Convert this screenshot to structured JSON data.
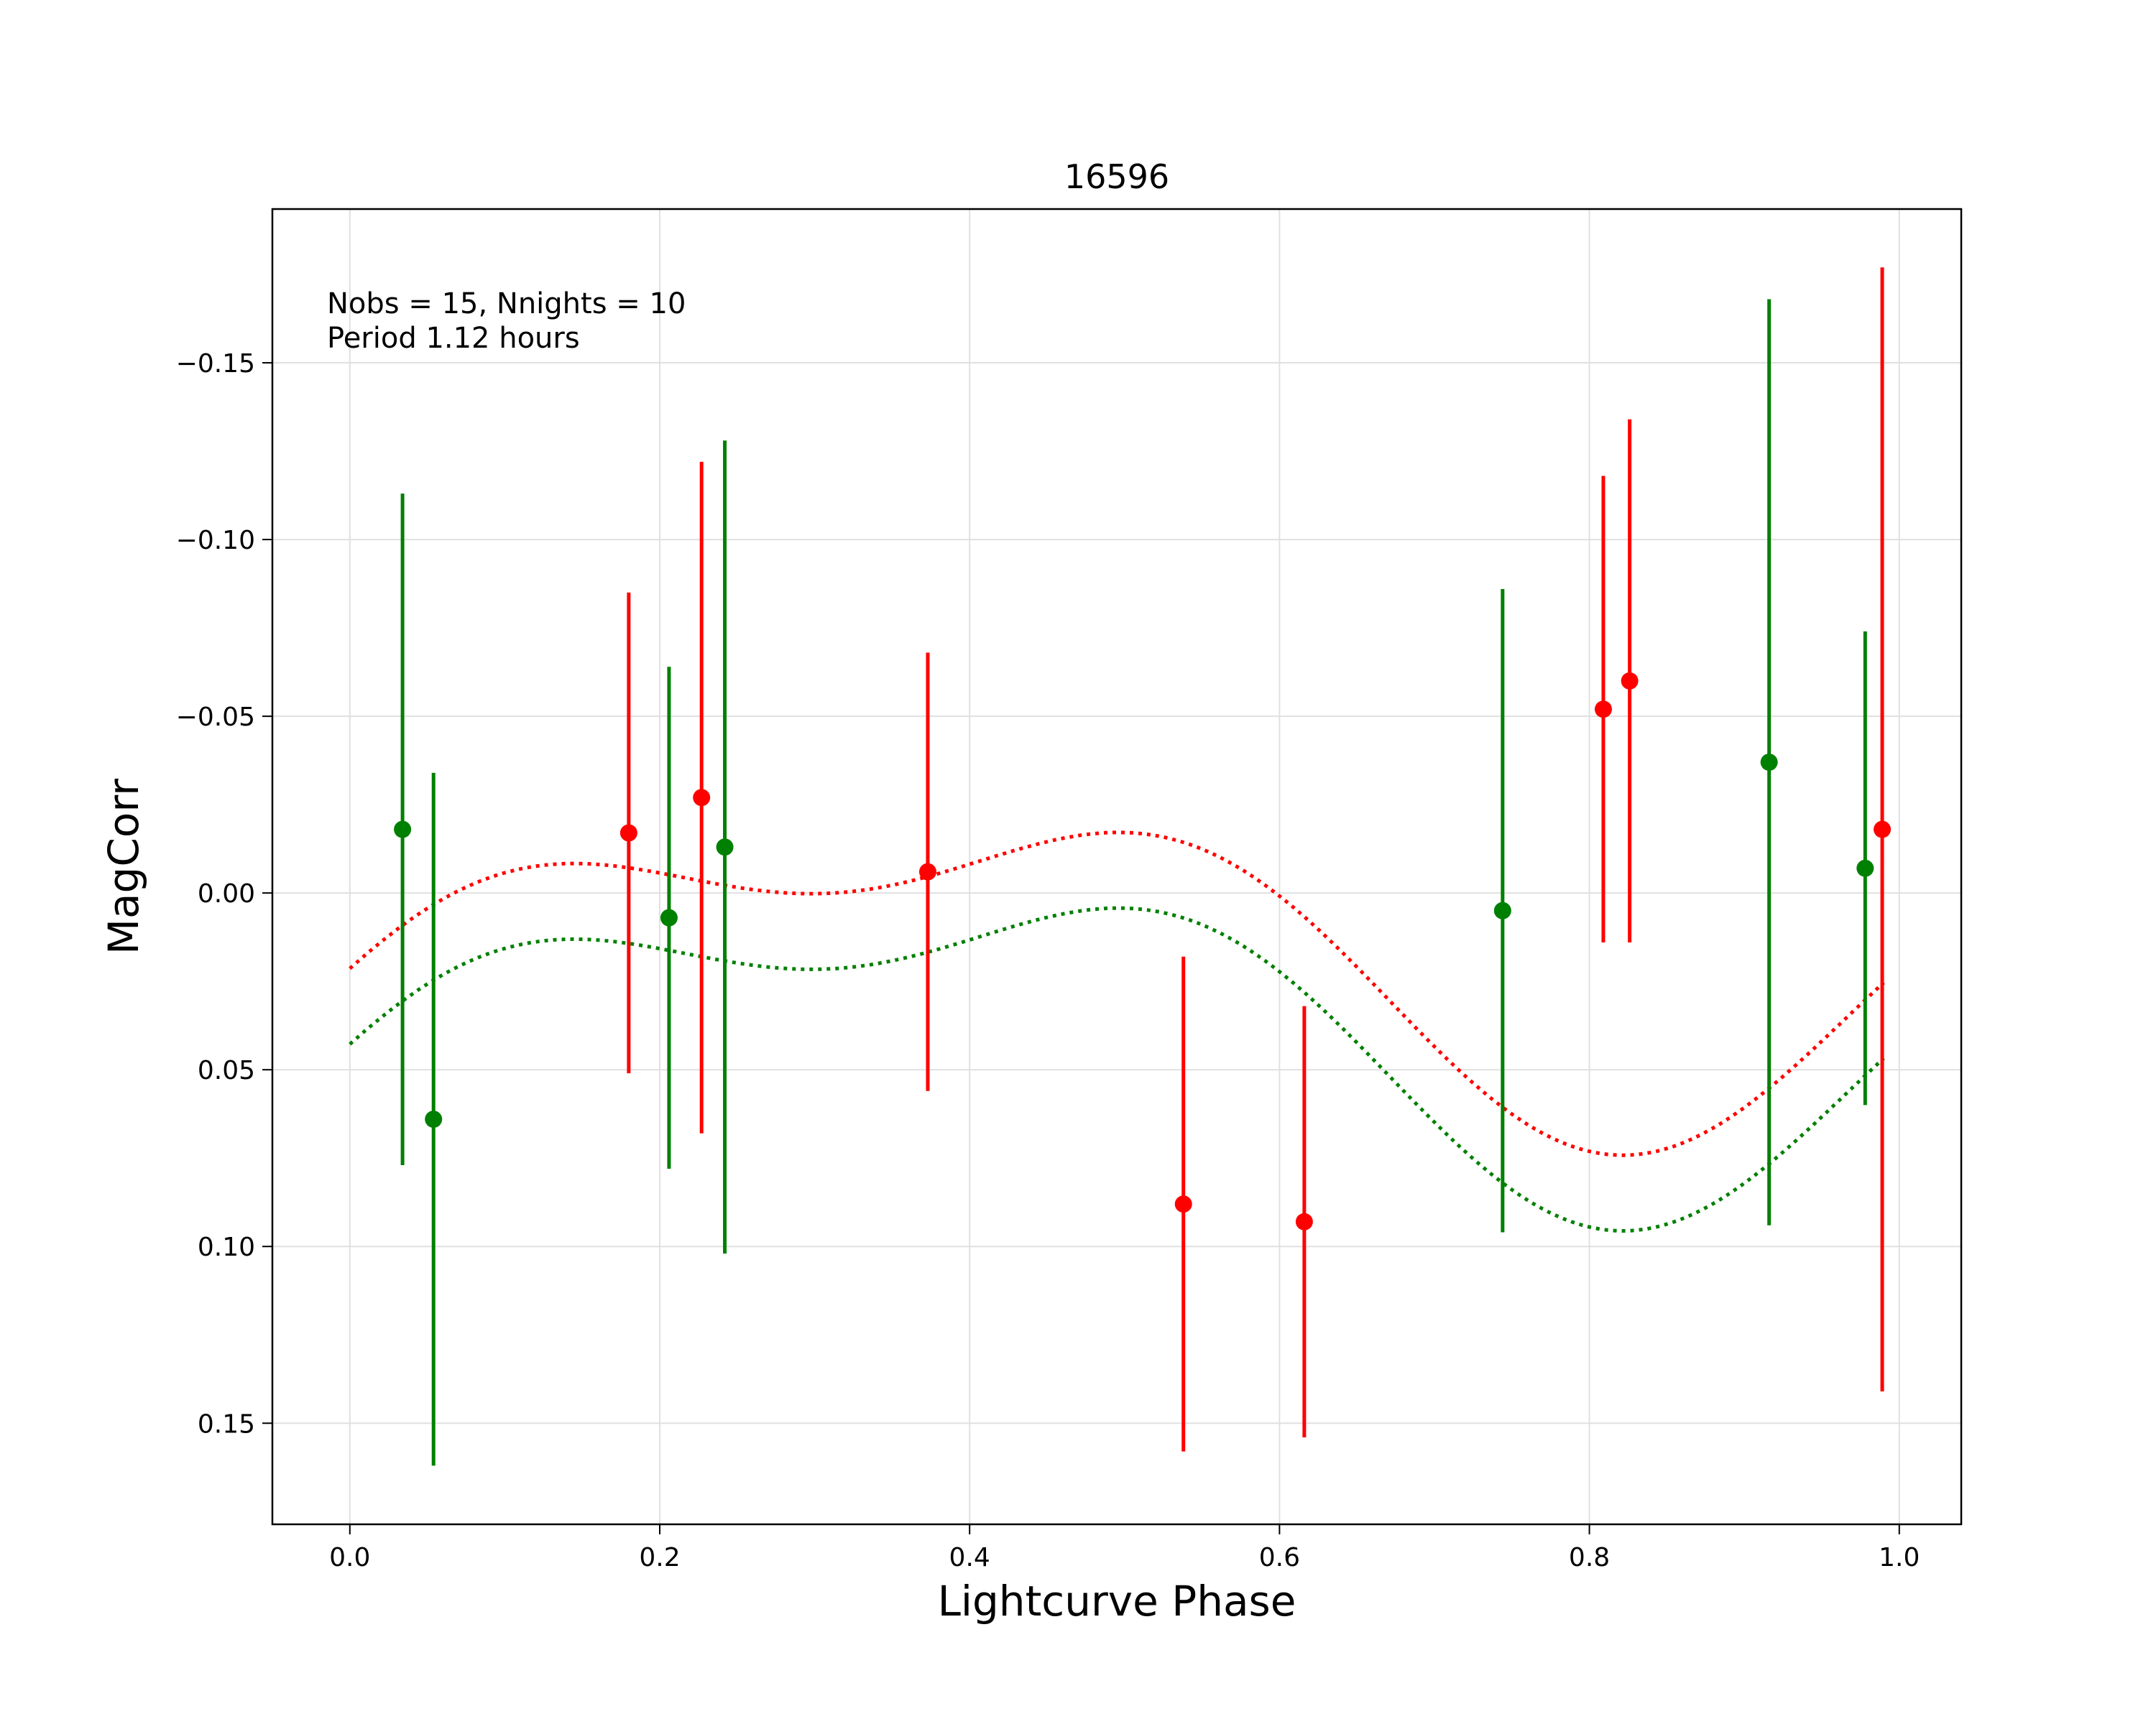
{
  "chart_data": {
    "type": "scatter",
    "title": "16596",
    "xlabel": "Lightcurve Phase",
    "ylabel": "MagCorr",
    "xlim": [
      -0.05,
      1.04
    ],
    "ylim": [
      0.1786,
      -0.1935
    ],
    "y_inverted": true,
    "grid": true,
    "annotation": [
      "Nobs = 15, Nnights = 10",
      "Period 1.12 hours"
    ],
    "xticks": [
      0.0,
      0.2,
      0.4,
      0.6,
      0.8,
      1.0
    ],
    "xtick_labels": [
      "0.0",
      "0.2",
      "0.4",
      "0.6",
      "0.8",
      "1.0"
    ],
    "yticks": [
      -0.15,
      -0.1,
      -0.05,
      0.0,
      0.05,
      0.1,
      0.15
    ],
    "ytick_labels": [
      "−0.15",
      "−0.10",
      "−0.05",
      "0.00",
      "0.05",
      "0.10",
      "0.15"
    ],
    "series": [
      {
        "color": "#ff0000",
        "points": [
          {
            "x": 0.18,
            "y": -0.017,
            "err": 0.068
          },
          {
            "x": 0.227,
            "y": -0.027,
            "err": 0.095
          },
          {
            "x": 0.373,
            "y": -0.006,
            "err": 0.062
          },
          {
            "x": 0.538,
            "y": 0.088,
            "err": 0.07
          },
          {
            "x": 0.616,
            "y": 0.093,
            "err": 0.061
          },
          {
            "x": 0.809,
            "y": -0.052,
            "err": 0.066
          },
          {
            "x": 0.826,
            "y": -0.06,
            "err": 0.074
          },
          {
            "x": 0.989,
            "y": -0.018,
            "err": 0.159
          }
        ],
        "fit": {
          "offset": 0.0163,
          "a1": 0.0374,
          "phi1": 0.336,
          "a2": 0.0207,
          "phi2": 0.065
        }
      },
      {
        "color": "#008000",
        "points": [
          {
            "x": 0.034,
            "y": -0.018,
            "err": 0.095
          },
          {
            "x": 0.054,
            "y": 0.064,
            "err": 0.098
          },
          {
            "x": 0.206,
            "y": 0.007,
            "err": 0.071
          },
          {
            "x": 0.242,
            "y": -0.013,
            "err": 0.115
          },
          {
            "x": 0.744,
            "y": 0.005,
            "err": 0.091
          },
          {
            "x": 0.916,
            "y": -0.037,
            "err": 0.131
          },
          {
            "x": 0.978,
            "y": -0.007,
            "err": 0.067
          }
        ],
        "fit": {
          "offset": 0.0377,
          "a1": 0.0374,
          "phi1": 0.336,
          "a2": 0.0207,
          "phi2": 0.065
        }
      }
    ]
  }
}
